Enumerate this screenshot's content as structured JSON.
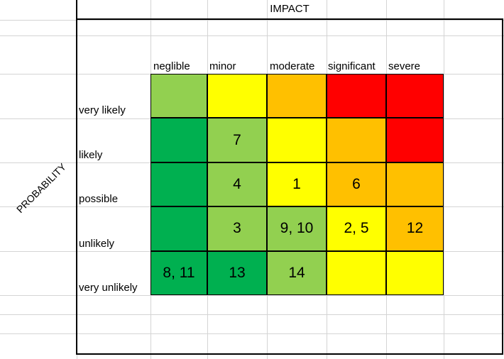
{
  "impact_title": "IMPACT",
  "probability_title": "PROBABILITY",
  "impact_levels": [
    "neglible",
    "minor",
    "moderate",
    "significant",
    "severe"
  ],
  "probability_levels": [
    "very likely",
    "likely",
    "possible",
    "unlikely",
    "very unlikely"
  ],
  "colors": {
    "dark_green": "#00b050",
    "light_green": "#92d050",
    "yellow": "#ffff00",
    "orange": "#ffc000",
    "red": "#ff0000"
  },
  "matrix": [
    [
      {
        "c": "light_green",
        "t": ""
      },
      {
        "c": "yellow",
        "t": ""
      },
      {
        "c": "orange",
        "t": ""
      },
      {
        "c": "red",
        "t": ""
      },
      {
        "c": "red",
        "t": ""
      }
    ],
    [
      {
        "c": "dark_green",
        "t": ""
      },
      {
        "c": "light_green",
        "t": "7"
      },
      {
        "c": "yellow",
        "t": ""
      },
      {
        "c": "orange",
        "t": ""
      },
      {
        "c": "red",
        "t": ""
      }
    ],
    [
      {
        "c": "dark_green",
        "t": ""
      },
      {
        "c": "light_green",
        "t": "4"
      },
      {
        "c": "yellow",
        "t": "1"
      },
      {
        "c": "orange",
        "t": "6"
      },
      {
        "c": "orange",
        "t": ""
      }
    ],
    [
      {
        "c": "dark_green",
        "t": ""
      },
      {
        "c": "light_green",
        "t": "3"
      },
      {
        "c": "light_green",
        "t": "9, 10"
      },
      {
        "c": "yellow",
        "t": "2, 5"
      },
      {
        "c": "orange",
        "t": "12"
      }
    ],
    [
      {
        "c": "dark_green",
        "t": "8, 11"
      },
      {
        "c": "dark_green",
        "t": "13"
      },
      {
        "c": "light_green",
        "t": "14"
      },
      {
        "c": "yellow",
        "t": ""
      },
      {
        "c": "yellow",
        "t": ""
      }
    ]
  ]
}
